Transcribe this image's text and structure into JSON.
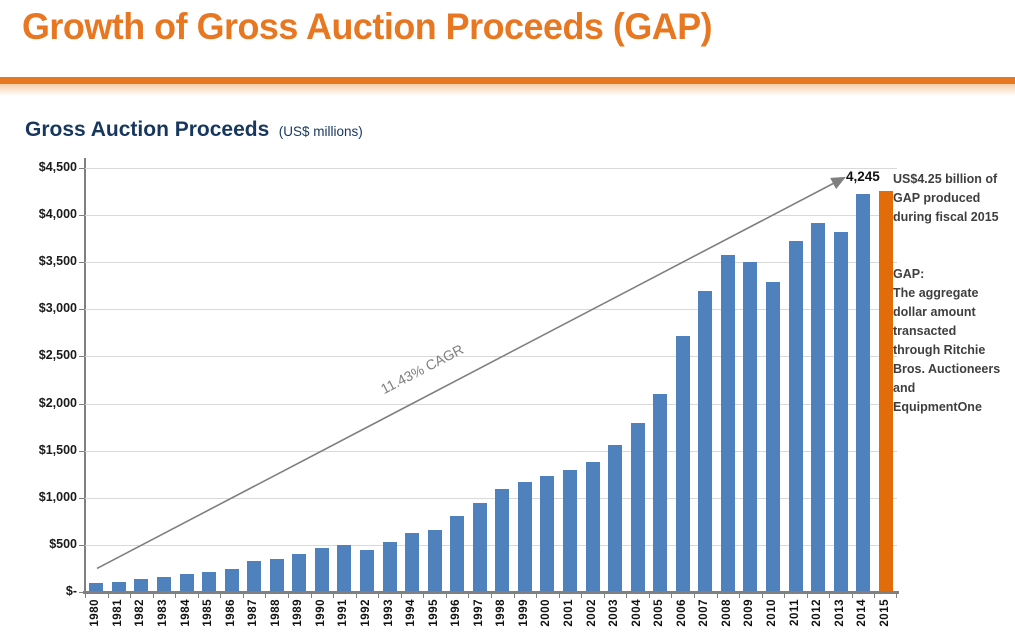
{
  "header": {
    "title": "Growth of Gross Auction Proceeds (GAP)"
  },
  "colors": {
    "title_orange": "#E87722",
    "navy": "#17375E",
    "bar_blue": "#4F81BD",
    "bar_highlight_orange": "#E36C0A",
    "gridline_gray": "#D9D9D9",
    "axis_gray": "#808080",
    "arrow_gray": "#7F7F7F",
    "note_text_gray": "#3F3F3F"
  },
  "chart_data": {
    "type": "bar",
    "title": "Gross Auction Proceeds",
    "unit_label": "(US$ millions)",
    "categories": [
      "1980",
      "1981",
      "1982",
      "1983",
      "1984",
      "1985",
      "1986",
      "1987",
      "1988",
      "1989",
      "1990",
      "1991",
      "1992",
      "1993",
      "1994",
      "1995",
      "1996",
      "1997",
      "1998",
      "1999",
      "2000",
      "2001",
      "2002",
      "2003",
      "2004",
      "2005",
      "2006",
      "2007",
      "2008",
      "2009",
      "2010",
      "2011",
      "2012",
      "2013",
      "2014",
      "2015"
    ],
    "values": [
      85,
      95,
      130,
      148,
      182,
      202,
      235,
      320,
      340,
      395,
      455,
      490,
      440,
      522,
      615,
      652,
      800,
      935,
      1080,
      1160,
      1222,
      1285,
      1368,
      1552,
      1780,
      2086,
      2710,
      3185,
      3570,
      3490,
      3275,
      3710,
      3908,
      3815,
      4213,
      4245
    ],
    "ylim": [
      0,
      4500
    ],
    "y_tick_step": 500,
    "y_tick_labels": [
      "$4,500",
      "$4,000",
      "$3,500",
      "$3,000",
      "$2,500",
      "$2,000",
      "$1,500",
      "$1,000",
      "$500",
      "$-"
    ],
    "grid": true,
    "legend": false,
    "highlight_category": "2015",
    "annotation": {
      "value_label": "4,245",
      "cagr_label": "11.43% CAGR",
      "arrow_start_value": 250,
      "arrow_end_value": 4390
    }
  },
  "sidebar": {
    "note1": "US$4.25 billion of\nGAP produced\nduring fiscal 2015",
    "note2": "GAP:\nThe aggregate\ndollar amount\ntransacted\nthrough Ritchie\nBros. Auctioneers\nand\nEquipmentOne"
  }
}
